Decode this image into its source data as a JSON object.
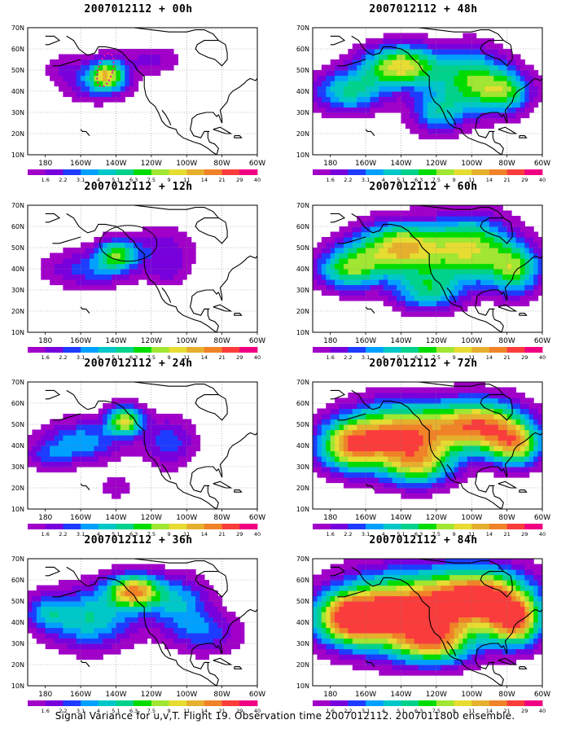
{
  "chart_data": {
    "type": "heatmap",
    "caption": "Signal Variance for u,v,T. Flight 19. Observation time 2007012112. 2007011800 ensemble.",
    "x_ticks": [
      "180",
      "160W",
      "140W",
      "120W",
      "100W",
      "80W",
      "60W"
    ],
    "y_ticks": [
      "10N",
      "20N",
      "30N",
      "40N",
      "50N",
      "60N",
      "70N"
    ],
    "xlim_lon": [
      -190,
      -60
    ],
    "ylim_lat": [
      10,
      70
    ],
    "grid": "dotted",
    "colorbar": {
      "labels": [
        "1.6",
        "2.2",
        "3.1",
        "4",
        "5.1",
        "6.3",
        "7.5",
        "9",
        "11",
        "14",
        "21",
        "29",
        "40"
      ],
      "colors": [
        "#a000c8",
        "#7800dc",
        "#1e3cff",
        "#00a0ff",
        "#00c8c8",
        "#00d28c",
        "#00dc00",
        "#a0e632",
        "#e6dc32",
        "#e6af2d",
        "#f08228",
        "#fa3c3c",
        "#f00082"
      ]
    },
    "panels": [
      {
        "title": "2007012112 + 00h",
        "lead_hours": 0
      },
      {
        "title": "2007012112 + 48h",
        "lead_hours": 48
      },
      {
        "title": "2007012112 + 12h",
        "lead_hours": 12
      },
      {
        "title": "2007012112 + 60h",
        "lead_hours": 60
      },
      {
        "title": "2007012112 + 24h",
        "lead_hours": 24
      },
      {
        "title": "2007012112 + 72h",
        "lead_hours": 72
      },
      {
        "title": "2007012112 + 36h",
        "lead_hours": 36
      },
      {
        "title": "2007012112 + 84h",
        "lead_hours": 84
      }
    ]
  }
}
